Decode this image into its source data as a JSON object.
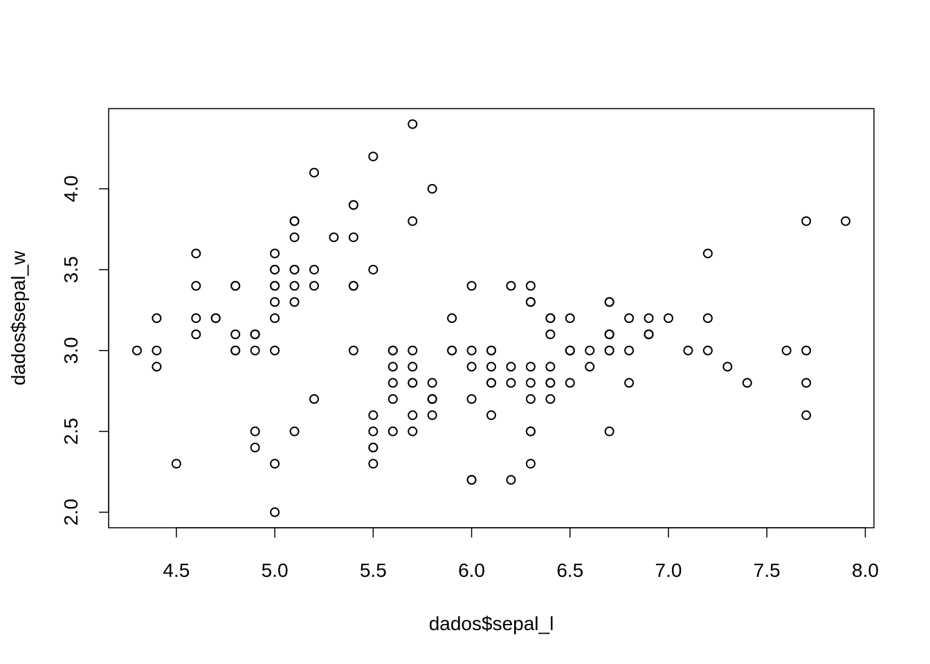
{
  "chart_data": {
    "type": "scatter",
    "title": "",
    "xlabel": "dados$sepal_l",
    "ylabel": "dados$sepal_w",
    "xlim": [
      4.156,
      8.044
    ],
    "ylim": [
      1.904,
      4.496
    ],
    "xticks": [
      "4.5",
      "5.0",
      "5.5",
      "6.0",
      "6.5",
      "7.0",
      "7.5",
      "8.0"
    ],
    "yticks": [
      "2.0",
      "2.5",
      "3.0",
      "3.5",
      "4.0"
    ],
    "grid": false,
    "marker": "open-circle",
    "color": "#000000",
    "points": [
      [
        5.1,
        3.5
      ],
      [
        4.9,
        3.0
      ],
      [
        4.7,
        3.2
      ],
      [
        4.6,
        3.1
      ],
      [
        5.0,
        3.6
      ],
      [
        5.4,
        3.9
      ],
      [
        4.6,
        3.4
      ],
      [
        5.0,
        3.4
      ],
      [
        4.4,
        2.9
      ],
      [
        4.9,
        3.1
      ],
      [
        5.4,
        3.7
      ],
      [
        4.8,
        3.4
      ],
      [
        4.8,
        3.0
      ],
      [
        4.3,
        3.0
      ],
      [
        5.8,
        4.0
      ],
      [
        5.7,
        4.4
      ],
      [
        5.4,
        3.9
      ],
      [
        5.1,
        3.5
      ],
      [
        5.7,
        3.8
      ],
      [
        5.1,
        3.8
      ],
      [
        5.4,
        3.4
      ],
      [
        5.1,
        3.7
      ],
      [
        4.6,
        3.6
      ],
      [
        5.1,
        3.3
      ],
      [
        4.8,
        3.4
      ],
      [
        5.0,
        3.0
      ],
      [
        5.0,
        3.4
      ],
      [
        5.2,
        3.5
      ],
      [
        5.2,
        3.4
      ],
      [
        4.7,
        3.2
      ],
      [
        4.8,
        3.1
      ],
      [
        5.4,
        3.4
      ],
      [
        5.2,
        4.1
      ],
      [
        5.5,
        4.2
      ],
      [
        4.9,
        3.1
      ],
      [
        5.0,
        3.2
      ],
      [
        5.5,
        3.5
      ],
      [
        4.9,
        3.1
      ],
      [
        4.4,
        3.0
      ],
      [
        5.1,
        3.4
      ],
      [
        5.0,
        3.5
      ],
      [
        4.5,
        2.3
      ],
      [
        4.4,
        3.2
      ],
      [
        5.0,
        3.5
      ],
      [
        5.1,
        3.8
      ],
      [
        4.8,
        3.0
      ],
      [
        5.1,
        3.8
      ],
      [
        4.6,
        3.2
      ],
      [
        5.3,
        3.7
      ],
      [
        5.0,
        3.3
      ],
      [
        7.0,
        3.2
      ],
      [
        6.4,
        3.2
      ],
      [
        6.9,
        3.1
      ],
      [
        5.5,
        2.3
      ],
      [
        6.5,
        2.8
      ],
      [
        5.7,
        2.8
      ],
      [
        6.3,
        3.3
      ],
      [
        4.9,
        2.4
      ],
      [
        6.6,
        2.9
      ],
      [
        5.2,
        2.7
      ],
      [
        5.0,
        2.0
      ],
      [
        5.9,
        3.0
      ],
      [
        6.0,
        2.2
      ],
      [
        6.1,
        2.9
      ],
      [
        5.6,
        2.9
      ],
      [
        6.7,
        3.1
      ],
      [
        5.6,
        3.0
      ],
      [
        5.8,
        2.7
      ],
      [
        6.2,
        2.2
      ],
      [
        5.6,
        2.5
      ],
      [
        5.9,
        3.2
      ],
      [
        6.1,
        2.8
      ],
      [
        6.3,
        2.5
      ],
      [
        6.1,
        2.8
      ],
      [
        6.4,
        2.9
      ],
      [
        6.6,
        3.0
      ],
      [
        6.8,
        2.8
      ],
      [
        6.7,
        3.0
      ],
      [
        6.0,
        2.9
      ],
      [
        5.7,
        2.6
      ],
      [
        5.5,
        2.4
      ],
      [
        5.5,
        2.4
      ],
      [
        5.8,
        2.7
      ],
      [
        6.0,
        2.7
      ],
      [
        5.4,
        3.0
      ],
      [
        6.0,
        3.4
      ],
      [
        6.7,
        3.1
      ],
      [
        6.3,
        2.3
      ],
      [
        5.6,
        3.0
      ],
      [
        5.5,
        2.5
      ],
      [
        5.5,
        2.6
      ],
      [
        6.1,
        3.0
      ],
      [
        5.8,
        2.6
      ],
      [
        5.0,
        2.3
      ],
      [
        5.6,
        2.7
      ],
      [
        5.7,
        3.0
      ],
      [
        5.7,
        2.9
      ],
      [
        6.2,
        2.9
      ],
      [
        5.1,
        2.5
      ],
      [
        5.7,
        2.8
      ],
      [
        6.3,
        3.3
      ],
      [
        5.8,
        2.7
      ],
      [
        7.1,
        3.0
      ],
      [
        6.3,
        2.9
      ],
      [
        6.5,
        3.0
      ],
      [
        7.6,
        3.0
      ],
      [
        4.9,
        2.5
      ],
      [
        7.3,
        2.9
      ],
      [
        6.7,
        2.5
      ],
      [
        7.2,
        3.6
      ],
      [
        6.5,
        3.2
      ],
      [
        6.4,
        2.7
      ],
      [
        6.8,
        3.0
      ],
      [
        5.7,
        2.5
      ],
      [
        5.8,
        2.8
      ],
      [
        6.4,
        3.2
      ],
      [
        6.5,
        3.0
      ],
      [
        7.7,
        3.8
      ],
      [
        7.7,
        2.6
      ],
      [
        6.0,
        2.2
      ],
      [
        6.9,
        3.2
      ],
      [
        5.6,
        2.8
      ],
      [
        7.7,
        2.8
      ],
      [
        6.3,
        2.7
      ],
      [
        6.7,
        3.3
      ],
      [
        7.2,
        3.2
      ],
      [
        6.2,
        2.8
      ],
      [
        6.1,
        3.0
      ],
      [
        6.4,
        2.8
      ],
      [
        7.2,
        3.0
      ],
      [
        7.4,
        2.8
      ],
      [
        7.9,
        3.8
      ],
      [
        6.4,
        2.8
      ],
      [
        6.3,
        2.8
      ],
      [
        6.1,
        2.6
      ],
      [
        7.7,
        3.0
      ],
      [
        6.3,
        3.4
      ],
      [
        6.4,
        3.1
      ],
      [
        6.0,
        3.0
      ],
      [
        6.9,
        3.1
      ],
      [
        6.7,
        3.1
      ],
      [
        6.9,
        3.1
      ],
      [
        5.8,
        2.7
      ],
      [
        6.8,
        3.2
      ],
      [
        6.7,
        3.3
      ],
      [
        6.7,
        3.0
      ],
      [
        6.3,
        2.5
      ],
      [
        6.5,
        3.0
      ],
      [
        6.2,
        3.4
      ],
      [
        5.9,
        3.0
      ]
    ]
  }
}
